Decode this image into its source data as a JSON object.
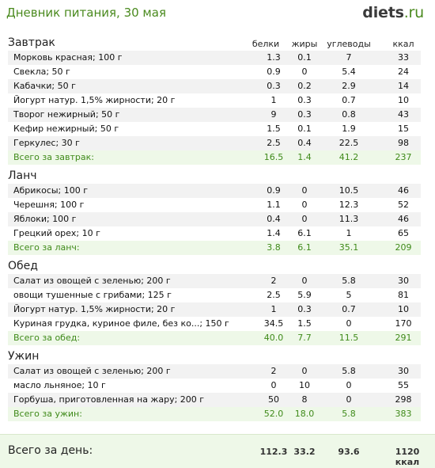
{
  "header": {
    "title": "Дневник питания, 30 мая",
    "logo_main": "diets",
    "logo_tld": ".ru"
  },
  "columns": {
    "protein": "белки",
    "fat": "жиры",
    "carbs": "углеводы",
    "kcal": "ккал"
  },
  "meals": [
    {
      "title": "Завтрак",
      "items": [
        {
          "name": "Морковь красная; 100 г",
          "p": "1.3",
          "f": "0.1",
          "c": "7",
          "k": "33"
        },
        {
          "name": "Свекла; 50 г",
          "p": "0.9",
          "f": "0",
          "c": "5.4",
          "k": "24"
        },
        {
          "name": "Кабачки; 50 г",
          "p": "0.3",
          "f": "0.2",
          "c": "2.9",
          "k": "14"
        },
        {
          "name": "Йогурт натур. 1,5% жирности; 20 г",
          "p": "1",
          "f": "0.3",
          "c": "0.7",
          "k": "10"
        },
        {
          "name": "Творог нежирный; 50 г",
          "p": "9",
          "f": "0.3",
          "c": "0.8",
          "k": "43"
        },
        {
          "name": "Кефир нежирный; 50 г",
          "p": "1.5",
          "f": "0.1",
          "c": "1.9",
          "k": "15"
        },
        {
          "name": "Геркулес; 30 г",
          "p": "2.5",
          "f": "0.4",
          "c": "22.5",
          "k": "98"
        }
      ],
      "total": {
        "label": "Всего за завтрак:",
        "p": "16.5",
        "f": "1.4",
        "c": "41.2",
        "k": "237"
      }
    },
    {
      "title": "Ланч",
      "items": [
        {
          "name": "Абрикосы; 100 г",
          "p": "0.9",
          "f": "0",
          "c": "10.5",
          "k": "46"
        },
        {
          "name": "Черешня; 100 г",
          "p": "1.1",
          "f": "0",
          "c": "12.3",
          "k": "52"
        },
        {
          "name": "Яблоки; 100 г",
          "p": "0.4",
          "f": "0",
          "c": "11.3",
          "k": "46"
        },
        {
          "name": "Грецкий орех; 10 г",
          "p": "1.4",
          "f": "6.1",
          "c": "1",
          "k": "65"
        }
      ],
      "total": {
        "label": "Всего за ланч:",
        "p": "3.8",
        "f": "6.1",
        "c": "35.1",
        "k": "209"
      }
    },
    {
      "title": "Обед",
      "items": [
        {
          "name": "Салат из овощей с зеленью; 200 г",
          "p": "2",
          "f": "0",
          "c": "5.8",
          "k": "30"
        },
        {
          "name": "овощи тушенные с грибами; 125 г",
          "p": "2.5",
          "f": "5.9",
          "c": "5",
          "k": "81"
        },
        {
          "name": "Йогурт натур. 1,5% жирности; 20 г",
          "p": "1",
          "f": "0.3",
          "c": "0.7",
          "k": "10"
        },
        {
          "name": "Куриная грудка, куриное филе, без ко...; 150 г",
          "p": "34.5",
          "f": "1.5",
          "c": "0",
          "k": "170"
        }
      ],
      "total": {
        "label": "Всего за обед:",
        "p": "40.0",
        "f": "7.7",
        "c": "11.5",
        "k": "291"
      }
    },
    {
      "title": "Ужин",
      "items": [
        {
          "name": "Салат из овощей с зеленью; 200 г",
          "p": "2",
          "f": "0",
          "c": "5.8",
          "k": "30"
        },
        {
          "name": "масло льняное; 10 г",
          "p": "0",
          "f": "10",
          "c": "0",
          "k": "55"
        },
        {
          "name": "Горбуша, приготовленная на жару; 200 г",
          "p": "50",
          "f": "8",
          "c": "0",
          "k": "298"
        }
      ],
      "total": {
        "label": "Всего за ужин:",
        "p": "52.0",
        "f": "18.0",
        "c": "5.8",
        "k": "383"
      }
    }
  ],
  "day_total": {
    "label": "Всего за день:",
    "p": "112.3",
    "f": "33.2",
    "c": "93.6",
    "k": "1120 ккал"
  }
}
